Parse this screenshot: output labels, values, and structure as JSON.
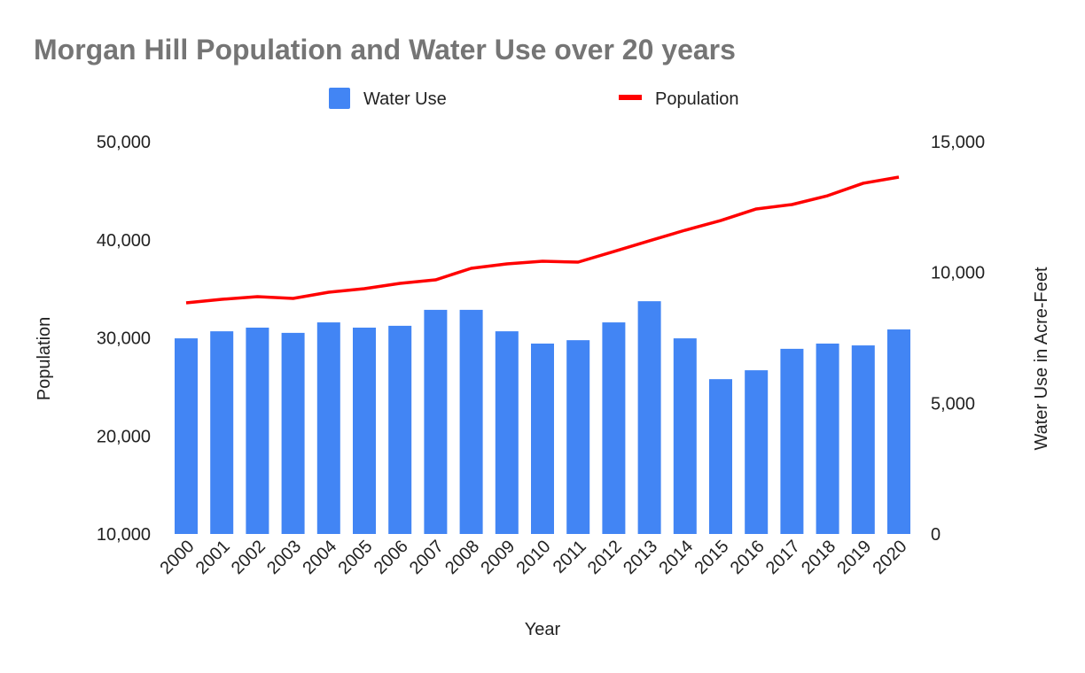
{
  "chart_data": {
    "type": "bar+line",
    "title": "Morgan Hill Population and Water Use over 20 years",
    "xlabel": "Year",
    "ylabel_left": "Population",
    "ylabel_right": "Water Use in Acre-Feet",
    "categories": [
      "2000",
      "2001",
      "2002",
      "2003",
      "2004",
      "2005",
      "2006",
      "2007",
      "2008",
      "2009",
      "2010",
      "2011",
      "2012",
      "2013",
      "2014",
      "2015",
      "2016",
      "2017",
      "2018",
      "2019",
      "2020"
    ],
    "left_axis": {
      "min": 10000,
      "max": 50000,
      "ticks": [
        10000,
        20000,
        30000,
        40000,
        50000
      ],
      "tick_labels": [
        "10,000",
        "20,000",
        "30,000",
        "40,000",
        "50,000"
      ]
    },
    "right_axis": {
      "min": 0,
      "max": 15000,
      "ticks": [
        0,
        5000,
        10000,
        15000
      ],
      "tick_labels": [
        "0",
        "5,000",
        "10,000",
        "15,000"
      ]
    },
    "series": [
      {
        "name": "Water Use",
        "type": "bar",
        "axis": "right",
        "color": "#4285f4",
        "values": [
          7480,
          7750,
          7890,
          7690,
          8090,
          7890,
          7960,
          8570,
          8570,
          7750,
          7280,
          7410,
          8090,
          8900,
          7480,
          5920,
          6260,
          7080,
          7280,
          7210,
          7820
        ]
      },
      {
        "name": "Population",
        "type": "line",
        "axis": "left",
        "color": "#ff0000",
        "values": [
          33570,
          33930,
          34200,
          34020,
          34650,
          35010,
          35550,
          35910,
          37090,
          37540,
          37810,
          37720,
          38800,
          39890,
          40970,
          41960,
          43140,
          43590,
          44490,
          45760,
          46390
        ]
      }
    ],
    "legend_position": "top",
    "grid": false
  }
}
